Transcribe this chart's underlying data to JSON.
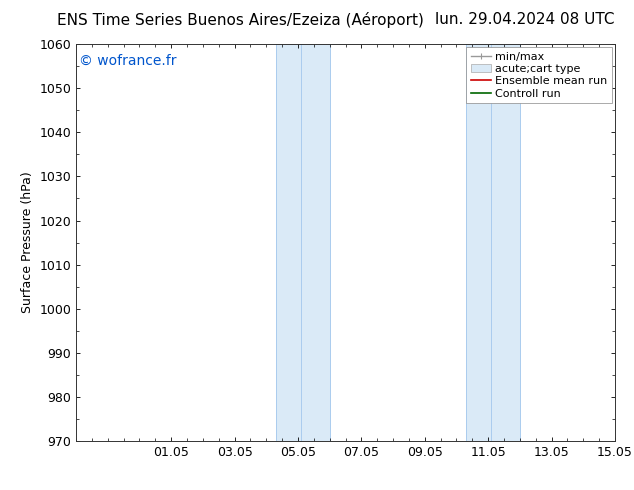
{
  "title_left": "ENS Time Series Buenos Aires/Ezeiza (Aéroport)",
  "title_right": "lun. 29.04.2024 08 UTC",
  "ylabel": "Surface Pressure (hPa)",
  "background_color": "#ffffff",
  "plot_bg_color": "#ffffff",
  "ylim": [
    970,
    1060
  ],
  "yticks": [
    970,
    980,
    990,
    1000,
    1010,
    1020,
    1030,
    1040,
    1050,
    1060
  ],
  "xlim_start": 29.0,
  "xlim_end": 46.0,
  "xtick_labels": [
    "01.05",
    "03.05",
    "05.05",
    "07.05",
    "09.05",
    "11.05",
    "13.05",
    "15.05"
  ],
  "xtick_positions": [
    32,
    34,
    36,
    38,
    40,
    42,
    44,
    46
  ],
  "shaded_bands": [
    {
      "xmin": 35.5,
      "xmax": 36.5,
      "color": "#daeaf7"
    },
    {
      "xmin": 36.5,
      "xmax": 37.2,
      "color": "#daeaf7"
    },
    {
      "xmin": 41.5,
      "xmax": 42.2,
      "color": "#daeaf7"
    },
    {
      "xmin": 42.2,
      "xmax": 43.0,
      "color": "#daeaf7"
    }
  ],
  "watermark_text": "© wofrance.fr",
  "watermark_color": "#0055cc",
  "watermark_fontsize": 10,
  "legend_fontsize": 8,
  "title_fontsize": 11,
  "axis_fontsize": 9,
  "tick_fontsize": 9,
  "ylabel_fontsize": 9
}
